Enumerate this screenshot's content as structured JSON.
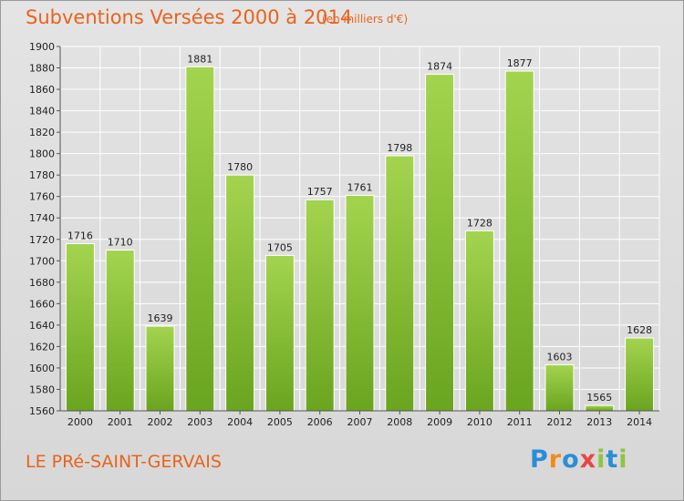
{
  "title": "Subventions Versées 2000 à 2014",
  "subtitle": "(en milliers d'€)",
  "commune": "LE PRé-SAINT-GERVAIS",
  "logo": {
    "text": "Proxiti",
    "letters": [
      {
        "ch": "P",
        "color": "#2a8ed6"
      },
      {
        "ch": "r",
        "color": "#f28a1a"
      },
      {
        "ch": "o",
        "color": "#2a8ed6"
      },
      {
        "ch": "x",
        "color": "#e94545"
      },
      {
        "ch": "i",
        "color": "#8cc63f"
      },
      {
        "ch": "t",
        "color": "#2a8ed6"
      },
      {
        "ch": "i",
        "color": "#8cc63f"
      }
    ]
  },
  "colors": {
    "accent": "#e9631c",
    "bar_light": "#a3d44f",
    "bar_dark": "#6aa51f",
    "grid": "#ffffff"
  },
  "chart_data": {
    "type": "bar",
    "categories": [
      "2000",
      "2001",
      "2002",
      "2003",
      "2004",
      "2005",
      "2006",
      "2007",
      "2008",
      "2009",
      "2010",
      "2011",
      "2012",
      "2013",
      "2014"
    ],
    "values": [
      1716,
      1710,
      1639,
      1881,
      1780,
      1705,
      1757,
      1761,
      1798,
      1874,
      1728,
      1877,
      1603,
      1565,
      1628
    ],
    "ylim": [
      1560,
      1900
    ],
    "yticks": [
      1560,
      1580,
      1600,
      1620,
      1640,
      1660,
      1680,
      1700,
      1720,
      1740,
      1760,
      1780,
      1800,
      1820,
      1840,
      1860,
      1880,
      1900
    ],
    "grid": true,
    "xlabel": "",
    "ylabel": ""
  }
}
